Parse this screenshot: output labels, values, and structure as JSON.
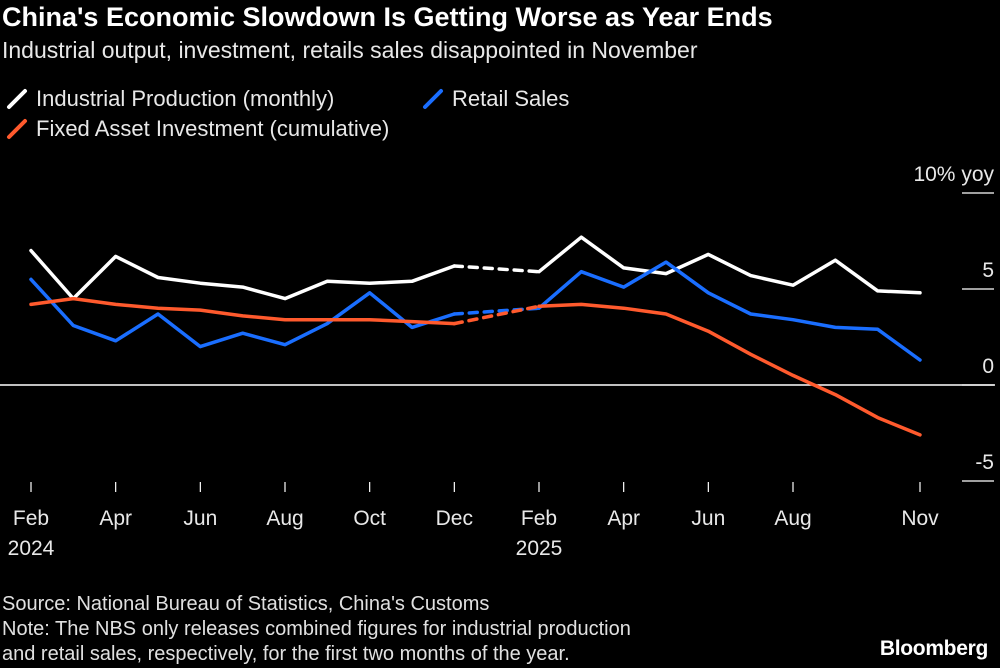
{
  "header": {
    "title": "China's Economic Slowdown Is Getting Worse as Year Ends",
    "subtitle": "Industrial output, investment, retails sales disappointed in November"
  },
  "footer": {
    "source": "Source: National Bureau of Statistics, China's Customs",
    "note_line1": "Note: The NBS only releases combined figures for industrial production",
    "note_line2": "and retail sales, respectively, for the first two months of the year.",
    "brand": "Bloomberg"
  },
  "chart_data": {
    "type": "line",
    "title": "China's Economic Slowdown Is Getting Worse as Year Ends",
    "subtitle": "Industrial output, investment, retails sales disappointed in November",
    "ylabel": "",
    "y_unit_label": "10% yoy",
    "ylim": [
      -5,
      10
    ],
    "yticks": [
      10,
      5,
      0,
      -5
    ],
    "ytick_labels": [
      "10% yoy",
      "5",
      "0",
      "-5"
    ],
    "x": [
      "2024-02",
      "2024-03",
      "2024-04",
      "2024-05",
      "2024-06",
      "2024-07",
      "2024-08",
      "2024-09",
      "2024-10",
      "2024-11",
      "2024-12",
      "2025-02",
      "2025-03",
      "2025-04",
      "2025-05",
      "2025-06",
      "2025-07",
      "2025-08",
      "2025-09",
      "2025-10",
      "2025-11"
    ],
    "x_tick_labels": [
      {
        "x": "2024-02",
        "label": "Feb",
        "year": "2024"
      },
      {
        "x": "2024-04",
        "label": "Apr",
        "year": ""
      },
      {
        "x": "2024-06",
        "label": "Jun",
        "year": ""
      },
      {
        "x": "2024-08",
        "label": "Aug",
        "year": ""
      },
      {
        "x": "2024-10",
        "label": "Oct",
        "year": ""
      },
      {
        "x": "2024-12",
        "label": "Dec",
        "year": ""
      },
      {
        "x": "2025-02",
        "label": "Feb",
        "year": "2025"
      },
      {
        "x": "2025-04",
        "label": "Apr",
        "year": ""
      },
      {
        "x": "2025-06",
        "label": "Jun",
        "year": ""
      },
      {
        "x": "2025-08",
        "label": "Aug",
        "year": ""
      },
      {
        "x": "2025-11",
        "label": "Nov",
        "year": ""
      }
    ],
    "legend_placement": "top-left",
    "grid": false,
    "zero_line": true,
    "dashed_segment": {
      "from": "2024-12",
      "to": "2025-02"
    },
    "series": [
      {
        "name": "Industrial Production (monthly)",
        "color": "#ffffff",
        "values": [
          7.0,
          4.5,
          6.7,
          5.6,
          5.3,
          5.1,
          4.5,
          5.4,
          5.3,
          5.4,
          6.2,
          5.9,
          7.7,
          6.1,
          5.8,
          6.8,
          5.7,
          5.2,
          6.5,
          4.9,
          4.8
        ]
      },
      {
        "name": "Retail Sales",
        "color": "#1a6eff",
        "values": [
          5.5,
          3.1,
          2.3,
          3.7,
          2.0,
          2.7,
          2.1,
          3.2,
          4.8,
          3.0,
          3.7,
          4.0,
          5.9,
          5.1,
          6.4,
          4.8,
          3.7,
          3.4,
          3.0,
          2.9,
          1.3
        ]
      },
      {
        "name": "Fixed Asset Investment (cumulative)",
        "color": "#ff5a2d",
        "values": [
          4.2,
          4.5,
          4.2,
          4.0,
          3.9,
          3.6,
          3.4,
          3.4,
          3.4,
          3.3,
          3.2,
          4.1,
          4.2,
          4.0,
          3.7,
          2.8,
          1.6,
          0.5,
          -0.5,
          -1.7,
          -2.6
        ]
      }
    ]
  }
}
